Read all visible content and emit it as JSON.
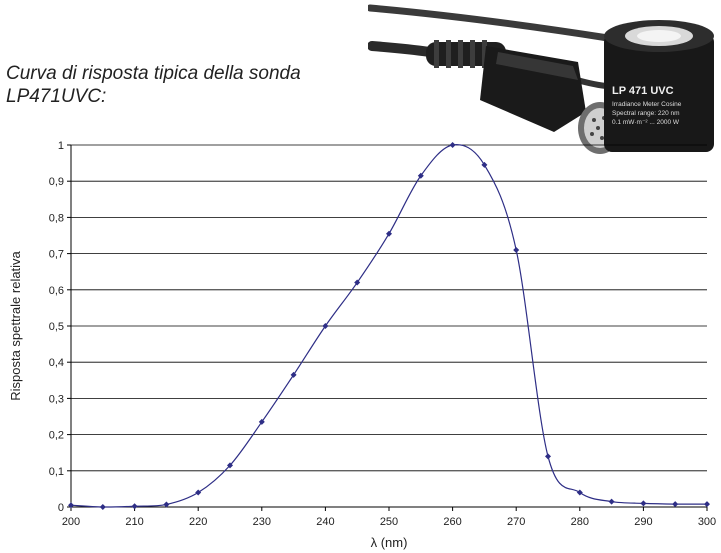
{
  "caption": {
    "line1": "Curva di risposta tipica della sonda",
    "line2": "LP471UVC:"
  },
  "product": {
    "label_line1": "LP 471 UVC",
    "label_line2": "Irradiance Meter Cosine",
    "label_line3": "Spectral range: 220 nm",
    "label_line4": "0.1 mW·m⁻² ... 2000 W"
  },
  "chart_data": {
    "type": "line",
    "title": "",
    "xlabel": "λ (nm)",
    "ylabel": "Risposta spettrale relativa",
    "xlim": [
      200,
      300
    ],
    "ylim": [
      0,
      1
    ],
    "x_ticks": [
      "200",
      "210",
      "220",
      "230",
      "240",
      "250",
      "260",
      "270",
      "280",
      "290",
      "300"
    ],
    "y_ticks": [
      "0",
      "0,1",
      "0,2",
      "0,3",
      "0,4",
      "0,5",
      "0,6",
      "0,7",
      "0,8",
      "0,9",
      "1"
    ],
    "grid": "horizontal",
    "series": [
      {
        "color": "#2e2e86",
        "x": [
          200,
          205,
          210,
          215,
          220,
          225,
          230,
          235,
          240,
          245,
          250,
          255,
          260,
          265,
          270,
          275,
          280,
          285,
          290,
          295,
          300
        ],
        "y": [
          0.005,
          0.0,
          0.002,
          0.007,
          0.04,
          0.115,
          0.235,
          0.365,
          0.5,
          0.62,
          0.755,
          0.915,
          1.0,
          0.945,
          0.71,
          0.14,
          0.04,
          0.015,
          0.01,
          0.008,
          0.008
        ]
      }
    ]
  }
}
